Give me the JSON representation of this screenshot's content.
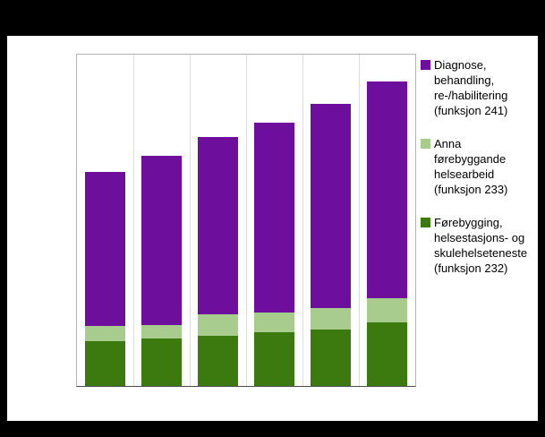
{
  "colors": {
    "page_bg": "#000000",
    "canvas_bg": "#ffffff",
    "plot_border": "#b3b3b3",
    "axis": "#4d4d4d",
    "gridline": "#dcdcdc",
    "series_purple": "#6d0f9c",
    "series_light_green": "#a8cc8e",
    "series_dark_green": "#3c7a10"
  },
  "chart_data": {
    "type": "bar",
    "stacked": true,
    "title": "",
    "xlabel": "",
    "ylabel": "",
    "categories": [
      "",
      "",
      "",
      "",
      "",
      ""
    ],
    "x_tick_labels_visible": false,
    "y_tick_labels_visible": false,
    "ylim": [
      0,
      100
    ],
    "grid": "vertical",
    "legend_position": "right",
    "series": [
      {
        "name": "Førebygging, helsestasjons- og skulehelseteneste (funksjon 232)",
        "color": "#3c7a10",
        "values": [
          13.4,
          14.2,
          15.1,
          16.1,
          16.9,
          19.1
        ]
      },
      {
        "name": "Anna førebyggande helsearbeid (funksjon 233)",
        "color": "#a8cc8e",
        "values": [
          4.6,
          4.3,
          6.5,
          6.2,
          6.7,
          7.3
        ]
      },
      {
        "name": "Diagnose, behandling, re-/habilitering (funksjon 241)",
        "color": "#6d0f9c",
        "values": [
          46.5,
          51.1,
          53.5,
          57.3,
          61.6,
          65.6
        ]
      }
    ],
    "totals_estimated": [
      64.5,
      69.6,
      75.1,
      79.6,
      85.2,
      92.0
    ]
  },
  "legend": {
    "entries": [
      {
        "label": "Diagnose, behandling, re-/habilitering (funksjon 241)",
        "color": "#6d0f9c"
      },
      {
        "label": "Anna førebyggande helsearbeid (funksjon 233)",
        "color": "#a8cc8e"
      },
      {
        "label": "Førebygging, helsestasjons- og skulehelseteneste (funksjon 232)",
        "color": "#3c7a10"
      }
    ]
  }
}
